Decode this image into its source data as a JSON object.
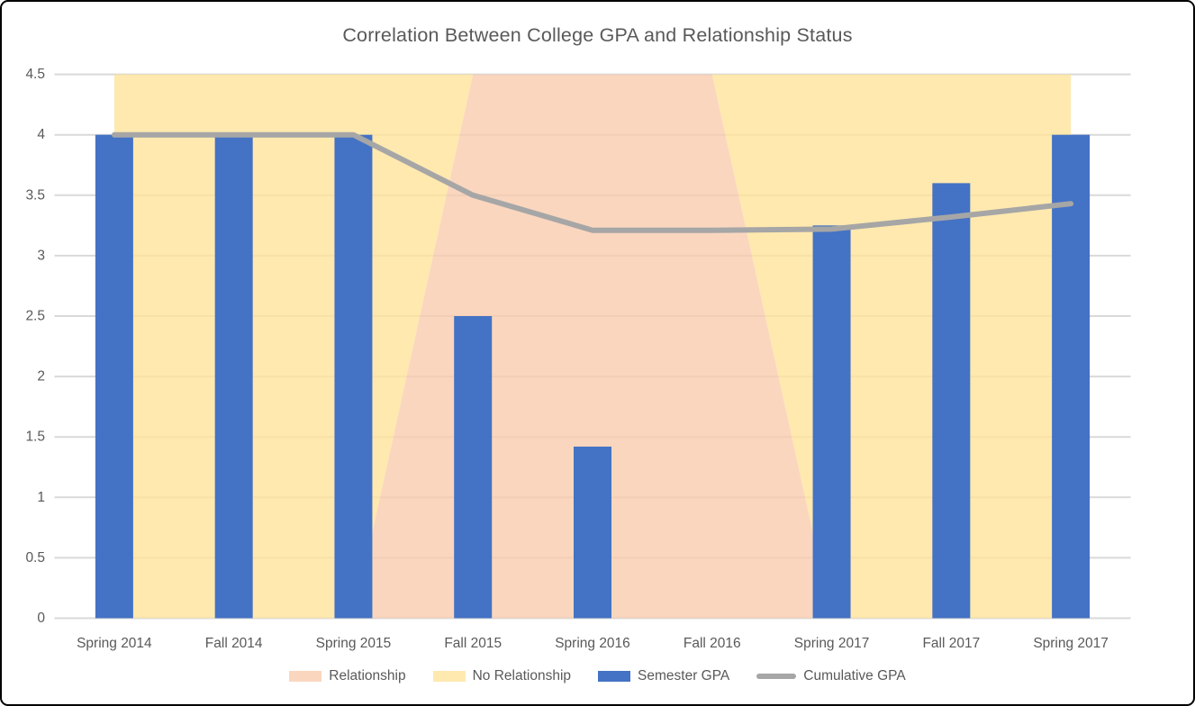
{
  "title": "Correlation Between College GPA and Relationship Status",
  "colors": {
    "bar_blue": "#4472C4",
    "line_gray": "#A6A6A6",
    "area_pink": "#F8CBAD",
    "area_yellow": "#FFE399",
    "gridline": "#D9D9D9",
    "text": "#595959",
    "border": "#000000",
    "background": "#FFFFFF"
  },
  "chart_data": {
    "type": "combo",
    "title": "Correlation Between College GPA and Relationship Status",
    "categories": [
      "Spring 2014",
      "Fall 2014",
      "Spring 2015",
      "Fall 2015",
      "Spring 2016",
      "Fall 2016",
      "Spring 2017",
      "Fall 2017",
      "Spring 2017"
    ],
    "series": [
      {
        "name": "Relationship",
        "type": "area",
        "stacked": true,
        "color": "#F8CBAD",
        "opacity": 0.78,
        "values": [
          0,
          0,
          0,
          4.5,
          4.5,
          4.5,
          0,
          0,
          0
        ]
      },
      {
        "name": "No Relationship",
        "type": "area",
        "stacked": true,
        "color": "#FFE399",
        "opacity": 0.78,
        "values": [
          4.5,
          4.5,
          4.5,
          0,
          0,
          0,
          4.5,
          4.5,
          4.5
        ]
      },
      {
        "name": "Semester GPA",
        "type": "bar",
        "color": "#4472C4",
        "values": [
          4,
          4,
          4,
          2.5,
          1.42,
          null,
          3.25,
          3.6,
          4
        ]
      },
      {
        "name": "Cumulative GPA",
        "type": "line",
        "color": "#A6A6A6",
        "values": [
          4,
          4,
          4,
          3.5,
          3.21,
          3.21,
          3.22,
          3.32,
          3.43
        ]
      }
    ],
    "ylim": [
      0,
      4.5
    ],
    "ytick_step": 0.5,
    "ytick_labels": [
      "0",
      "0.5",
      "1",
      "1.5",
      "2",
      "2.5",
      "3",
      "3.5",
      "4",
      "4.5"
    ],
    "grid": true,
    "legend_position": "bottom",
    "legend": [
      "Relationship",
      "No Relationship",
      "Semester GPA",
      "Cumulative GPA"
    ]
  }
}
